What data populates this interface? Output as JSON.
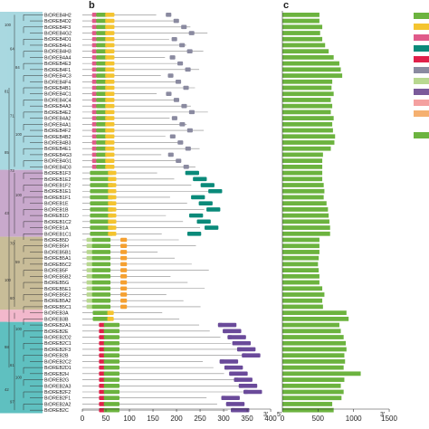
{
  "panel_b": {
    "label": "b",
    "genes": [
      "BrDREB4H2",
      "BrDREB4D2",
      "BrDREB4F3",
      "BrDREB4G2",
      "BrDREB4D1",
      "BrDREB4H1",
      "BrDREB4H3",
      "BrDREB4A4",
      "BrDREB4E3",
      "BrDREB4F1",
      "BrDREB4C3",
      "BrDREB4F4",
      "BrDREB4B1",
      "BrDREB4C1",
      "BrDREB4C4",
      "BrDREB4A3",
      "BrDREB4E2",
      "BrDREB4A2",
      "BrDREB4A1",
      "BrDREB4F2",
      "BrDREB4B2",
      "BrDREB4B3",
      "BrDREB4E1",
      "BrDREB4G3",
      "BrDREB4G1",
      "BrDREB4D3",
      "BrDREB1F3",
      "BrDREB1E2",
      "BrDREB1F2",
      "BrDREB1E1",
      "BrDREB1F1",
      "BrDREB1E",
      "BrDREB1B",
      "BrDREB1D",
      "BrDREB1C2",
      "BrDREB1A",
      "BrDREB1C1",
      "BrDREB5D",
      "BrDREB5H",
      "BrDREB5B1",
      "BrDREB5A1",
      "BrDREB5C2",
      "BrDREB5F",
      "BrDREB5B2",
      "BrDREB5G",
      "BrDREB5E1",
      "BrDREB5E2",
      "BrDREB5A2",
      "BrDREB5C1",
      "BrDREB3A",
      "BrDREB3B",
      "BrDREB2A1",
      "BrDREB2E",
      "BrDREB2D2",
      "BrDREB2C1",
      "BrDREB2F3",
      "BrDREB2B",
      "BrDREB2C2",
      "BrDREB2D1",
      "BrDREB2H",
      "BrDREB2G",
      "BrDREB2A3",
      "BrDREB2F2",
      "BrDREB2F1",
      "BrDREB2A2",
      "BrDREB2C"
    ],
    "x_ticks": [
      "0",
      "50",
      "100",
      "150",
      "200",
      "250",
      "300",
      "350",
      "400"
    ],
    "end_label": "3'"
  },
  "panel_c": {
    "label": "c",
    "lengths": [
      520,
      520,
      560,
      530,
      560,
      600,
      650,
      720,
      800,
      820,
      840,
      700,
      690,
      720,
      680,
      700,
      680,
      720,
      700,
      710,
      740,
      730,
      680,
      570,
      560,
      560,
      560,
      560,
      580,
      590,
      580,
      620,
      640,
      650,
      660,
      670,
      670,
      520,
      520,
      520,
      510,
      500,
      510,
      520,
      520,
      560,
      590,
      560,
      570,
      900,
      930,
      800,
      820,
      860,
      890,
      900,
      870,
      880,
      860,
      1100,
      870,
      820,
      860,
      830,
      700,
      720
    ],
    "x_ticks": [
      "0",
      "500",
      "1000",
      "1500"
    ],
    "start_label": "5'",
    "end_label": "3'"
  },
  "subfamilies": [
    {
      "name": "A4",
      "color": "#a8d8e0",
      "rows": [
        0,
        25
      ]
    },
    {
      "name": "A1",
      "color": "#c8a8cc",
      "rows": [
        26,
        36
      ]
    },
    {
      "name": "A5",
      "color": "#c8bc98",
      "rows": [
        37,
        48
      ]
    },
    {
      "name": "A3",
      "color": "#f2b8cc",
      "rows": [
        49,
        50
      ]
    },
    {
      "name": "A2",
      "color": "#5fc0c0",
      "rows": [
        51,
        65
      ]
    }
  ],
  "tree_support": [
    "100",
    "64",
    "84",
    "81",
    "71",
    "100",
    "85",
    "73",
    "100",
    "43",
    "70",
    "59",
    "100",
    "60",
    "100",
    "98",
    "61",
    "100",
    "42",
    "97"
  ],
  "legend": {
    "motif_colors": [
      "#6cb33f",
      "#f4c430",
      "#e05a8a",
      "#0a8a7a",
      "#e0204a",
      "#8a8aa0",
      "#b8d890",
      "#7a5a9a",
      "#f4a0a0",
      "#f5b070"
    ],
    "length_color": "#6cb33f"
  },
  "colors": {
    "bar": "#6cb33f",
    "motif1": "#6cb33f",
    "motif2": "#f4c430",
    "motif3": "#e05a8a",
    "motif4": "#0a8a7a",
    "motif5": "#e0204a",
    "motif6": "#8a8aa0",
    "motif7": "#b8d890",
    "motif8": "#f5a030",
    "motif9": "#6a4a9a",
    "line": "#888888"
  }
}
